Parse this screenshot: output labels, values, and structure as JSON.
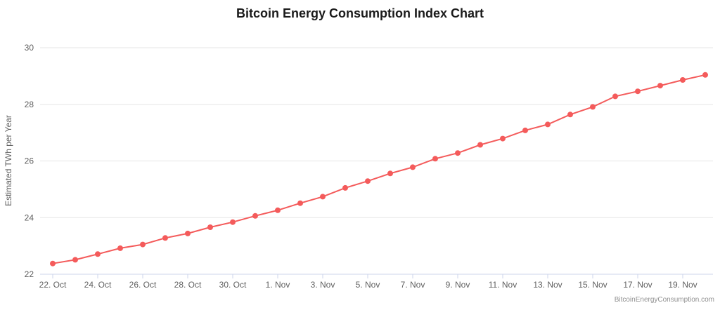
{
  "chart_data": {
    "type": "line",
    "title": "Bitcoin Energy Consumption Index Chart",
    "xlabel": "",
    "ylabel": "Estimated TWh per Year",
    "ylim": [
      22,
      30
    ],
    "yticks": [
      22,
      24,
      26,
      28,
      30
    ],
    "grid": true,
    "legend": false,
    "categories": [
      "22. Oct",
      "23. Oct",
      "24. Oct",
      "25. Oct",
      "26. Oct",
      "27. Oct",
      "28. Oct",
      "29. Oct",
      "30. Oct",
      "31. Oct",
      "1. Nov",
      "2. Nov",
      "3. Nov",
      "4. Nov",
      "5. Nov",
      "6. Nov",
      "7. Nov",
      "8. Nov",
      "9. Nov",
      "10. Nov",
      "11. Nov",
      "12. Nov",
      "13. Nov",
      "14. Nov",
      "15. Nov",
      "16. Nov",
      "17. Nov",
      "18. Nov",
      "19. Nov",
      "20. Nov"
    ],
    "x_tick_every": 2,
    "x_tick_labels": [
      "22. Oct",
      "24. Oct",
      "26. Oct",
      "28. Oct",
      "30. Oct",
      "1. Nov",
      "3. Nov",
      "5. Nov",
      "7. Nov",
      "9. Nov",
      "11. Nov",
      "13. Nov",
      "15. Nov",
      "17. Nov",
      "19. Nov"
    ],
    "series": [
      {
        "name": "Estimated TWh per Year",
        "color": "#f45b5b",
        "values": [
          22.38,
          22.51,
          22.71,
          22.92,
          23.05,
          23.28,
          23.44,
          23.66,
          23.84,
          24.06,
          24.26,
          24.51,
          24.74,
          25.05,
          25.29,
          25.56,
          25.78,
          26.08,
          26.28,
          26.57,
          26.79,
          27.08,
          27.29,
          27.64,
          27.91,
          28.28,
          28.46,
          28.66,
          28.86,
          29.04
        ]
      }
    ]
  },
  "colors": {
    "line": "#f45b5b",
    "grid": "#e6e6e6",
    "axis": "#ccd6eb",
    "tick": "#ccd6eb"
  },
  "credit": "BitcoinEnergyConsumption.com"
}
